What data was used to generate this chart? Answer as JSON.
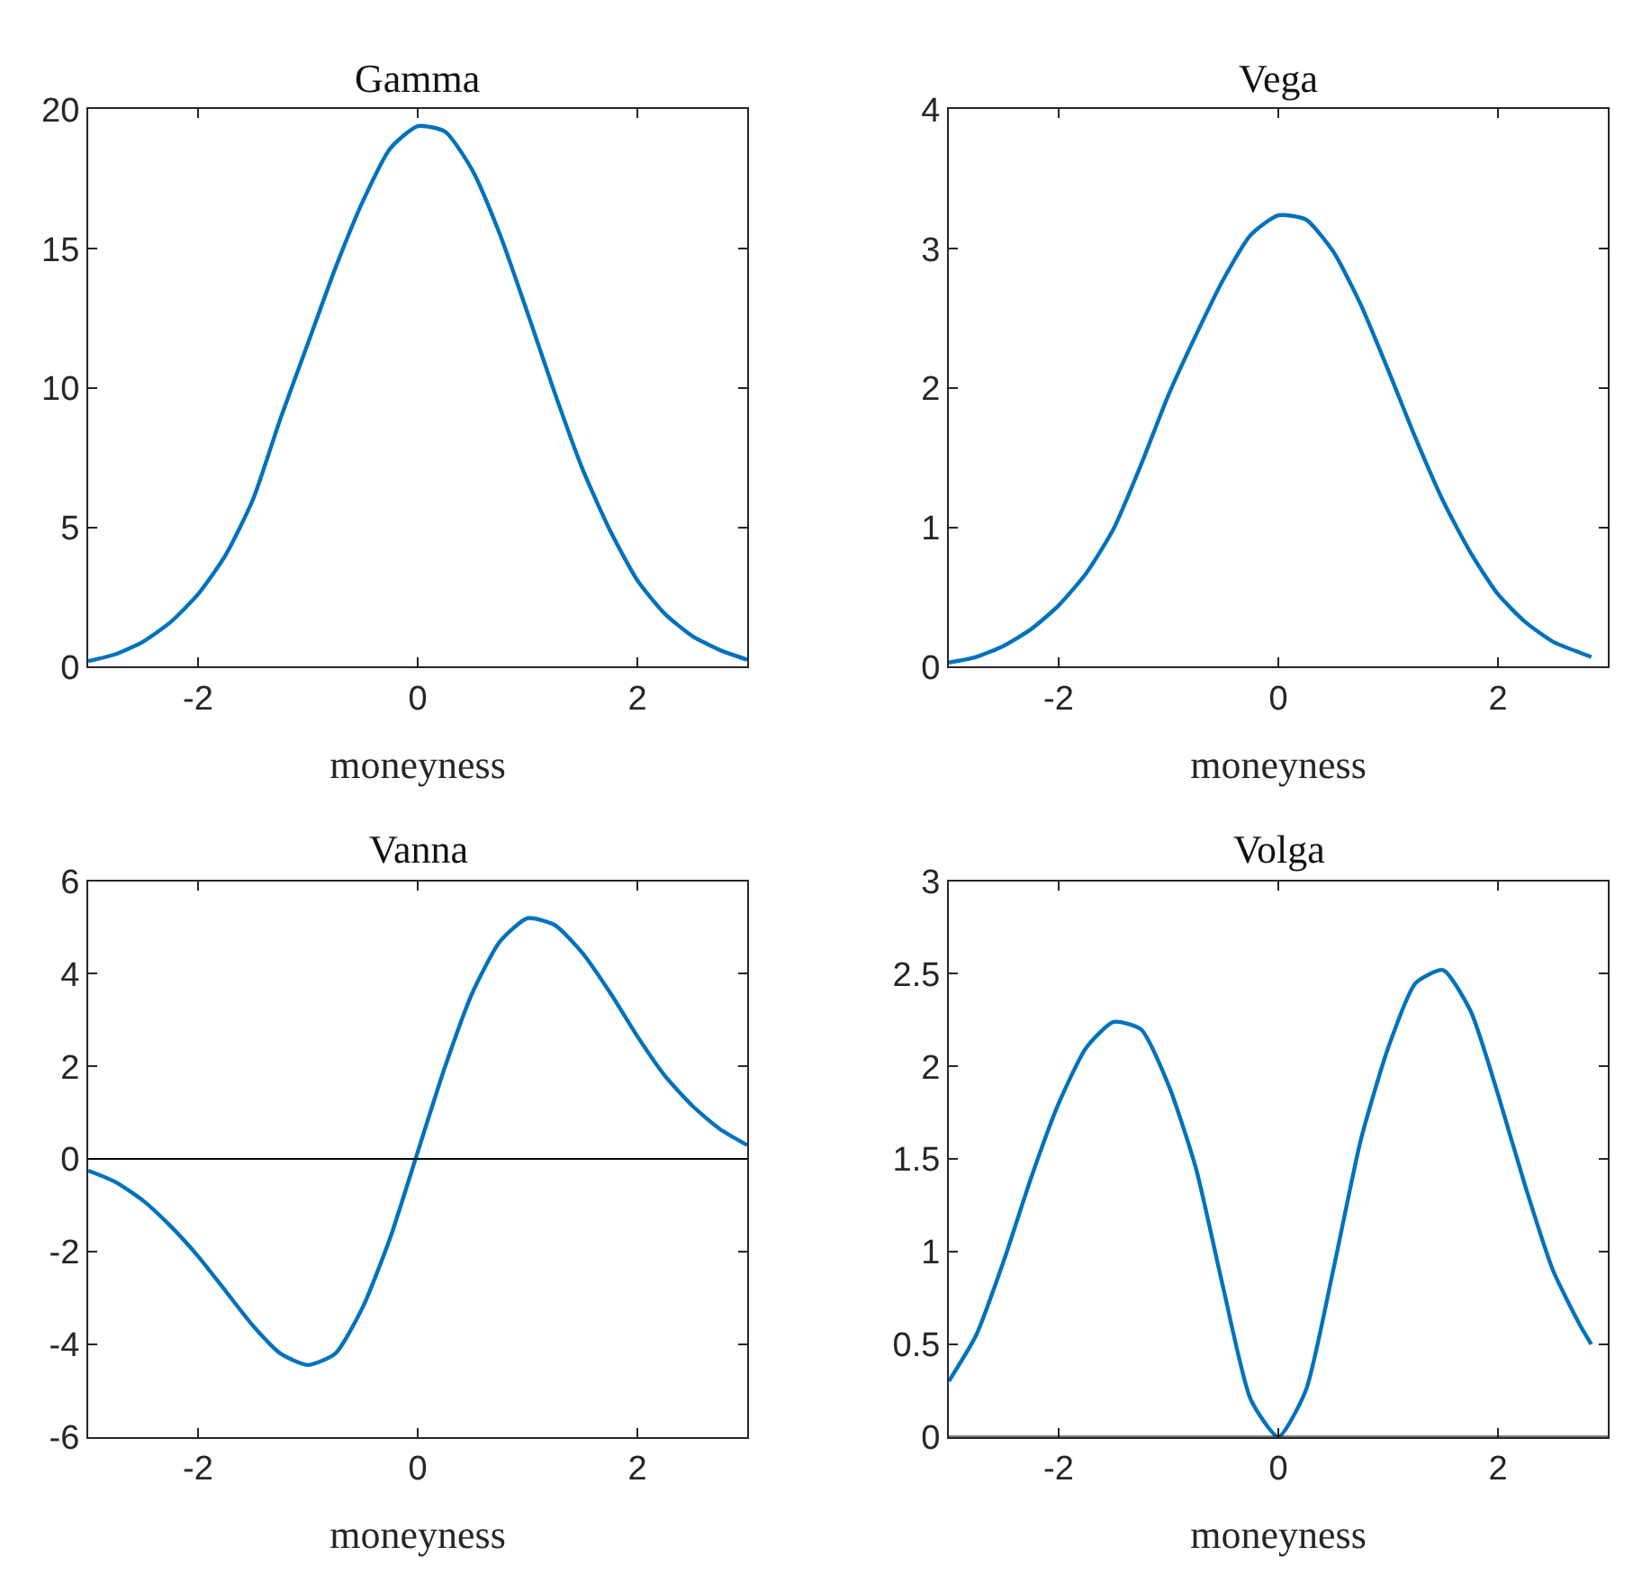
{
  "chart_data": [
    {
      "type": "line",
      "title": "Gamma",
      "xlabel": "moneyness",
      "x": [
        -3,
        -2.75,
        -2.5,
        -2.25,
        -2,
        -1.75,
        -1.5,
        -1.25,
        -1,
        -0.75,
        -0.5,
        -0.25,
        0,
        0.25,
        0.5,
        0.75,
        1,
        1.25,
        1.5,
        1.75,
        2,
        2.25,
        2.5,
        2.75,
        3
      ],
      "series": [
        {
          "color": "#0072bd",
          "values": [
            0.2,
            0.45,
            0.9,
            1.6,
            2.6,
            4.0,
            6.0,
            8.9,
            11.6,
            14.3,
            16.7,
            18.6,
            19.4,
            19.2,
            17.8,
            15.5,
            12.7,
            9.8,
            7.1,
            4.9,
            3.1,
            1.9,
            1.1,
            0.6,
            0.25
          ]
        }
      ],
      "xlim": [
        -3,
        3
      ],
      "xticks": [
        -2,
        0,
        2
      ],
      "ylim": [
        0,
        20
      ],
      "yticks": [
        0,
        5,
        10,
        15,
        20
      ]
    },
    {
      "type": "line",
      "title": "Vega",
      "xlabel": "moneyness",
      "x": [
        -3,
        -2.75,
        -2.5,
        -2.25,
        -2,
        -1.75,
        -1.5,
        -1.25,
        -1,
        -0.75,
        -0.5,
        -0.25,
        0,
        0.25,
        0.5,
        0.75,
        1,
        1.25,
        1.5,
        1.75,
        2,
        2.25,
        2.5,
        2.75,
        2.85
      ],
      "series": [
        {
          "color": "#0072bd",
          "values": [
            0.03,
            0.07,
            0.15,
            0.27,
            0.44,
            0.67,
            0.99,
            1.45,
            1.95,
            2.38,
            2.78,
            3.1,
            3.24,
            3.21,
            2.98,
            2.6,
            2.13,
            1.64,
            1.19,
            0.82,
            0.52,
            0.32,
            0.18,
            0.1,
            0.07
          ]
        }
      ],
      "xlim": [
        -3,
        3
      ],
      "xticks": [
        -2,
        0,
        2
      ],
      "ylim": [
        0,
        4
      ],
      "yticks": [
        0,
        1,
        2,
        3,
        4
      ]
    },
    {
      "type": "line",
      "title": "Vanna",
      "xlabel": "moneyness",
      "x": [
        -3,
        -2.75,
        -2.5,
        -2.25,
        -2,
        -1.75,
        -1.5,
        -1.25,
        -1,
        -0.75,
        -0.5,
        -0.25,
        0,
        0.25,
        0.5,
        0.75,
        1,
        1.25,
        1.5,
        1.75,
        2,
        2.25,
        2.5,
        2.75,
        3
      ],
      "series": [
        {
          "color": "#0072bd",
          "values": [
            -0.25,
            -0.5,
            -0.9,
            -1.45,
            -2.1,
            -2.85,
            -3.6,
            -4.2,
            -4.45,
            -4.2,
            -3.2,
            -1.7,
            0.15,
            2.0,
            3.6,
            4.7,
            5.2,
            5.05,
            4.45,
            3.6,
            2.65,
            1.8,
            1.15,
            0.65,
            0.3
          ]
        }
      ],
      "xlim": [
        -3,
        3
      ],
      "xticks": [
        -2,
        0,
        2
      ],
      "ylim": [
        -6,
        6
      ],
      "yticks": [
        -6,
        -4,
        -2,
        0,
        2,
        4,
        6
      ],
      "ref_lines": [
        {
          "axis": "y",
          "value": 0,
          "color": "#000000"
        }
      ]
    },
    {
      "type": "line",
      "title": "Volga",
      "xlabel": "moneyness",
      "x": [
        -3,
        -2.75,
        -2.5,
        -2.25,
        -2,
        -1.75,
        -1.5,
        -1.25,
        -1,
        -0.75,
        -0.5,
        -0.25,
        0,
        0.25,
        0.5,
        0.75,
        1,
        1.25,
        1.5,
        1.75,
        2,
        2.25,
        2.5,
        2.75,
        2.85
      ],
      "series": [
        {
          "color": "#0072bd",
          "values": [
            0.3,
            0.55,
            0.95,
            1.4,
            1.8,
            2.1,
            2.24,
            2.2,
            1.9,
            1.45,
            0.8,
            0.2,
            0.0,
            0.25,
            0.9,
            1.6,
            2.1,
            2.45,
            2.52,
            2.3,
            1.85,
            1.35,
            0.9,
            0.6,
            0.5
          ]
        }
      ],
      "xlim": [
        -3,
        3
      ],
      "xticks": [
        -2,
        0,
        2
      ],
      "ylim": [
        0,
        3
      ],
      "yticks": [
        0,
        0.5,
        1,
        1.5,
        2,
        2.5,
        3
      ],
      "ref_lines": [
        {
          "axis": "y",
          "value": 0,
          "color": "#000000"
        }
      ]
    }
  ]
}
